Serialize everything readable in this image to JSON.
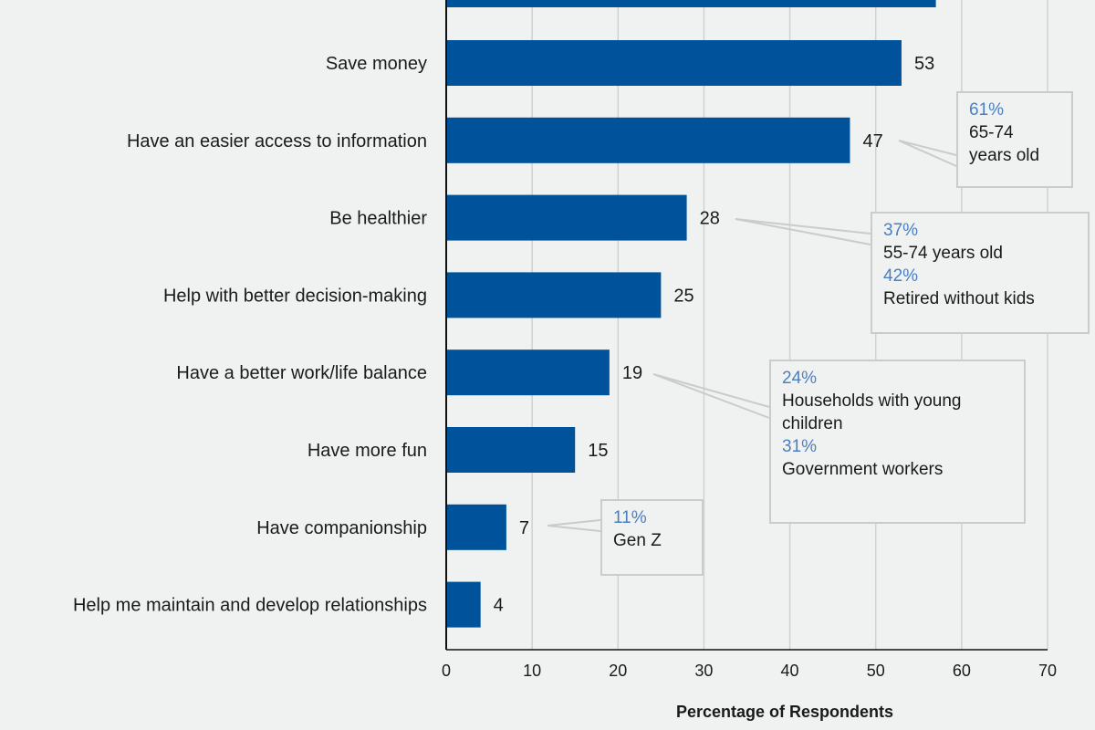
{
  "chart_data": {
    "type": "bar",
    "orientation": "horizontal",
    "xlabel": "Percentage of Respondents",
    "xlim": [
      0,
      70
    ],
    "xticks": [
      0,
      10,
      20,
      30,
      40,
      50,
      60,
      70
    ],
    "grid": true,
    "bar_color": "#00529b",
    "truncated_top_value": 57,
    "categories": [
      "Save money",
      "Have an easier access to information",
      "Be healthier",
      "Help with better decision-making",
      "Have a better work/life balance",
      "Have more fun",
      "Have companionship",
      "Help me maintain and develop relationships"
    ],
    "values": [
      53,
      47,
      28,
      25,
      19,
      15,
      7,
      4
    ],
    "annotations": [
      {
        "category": "Have an easier access to information",
        "lines": [
          {
            "pct": "61%",
            "text": "65-74"
          },
          {
            "pct": "",
            "text": "years old"
          }
        ]
      },
      {
        "category": "Be healthier",
        "lines": [
          {
            "pct": "37%",
            "text": "55-74 years old"
          },
          {
            "pct": "42%",
            "text": "Retired without kids"
          }
        ]
      },
      {
        "category": "Have a better work/life balance",
        "lines": [
          {
            "pct": "24%",
            "text": "Households with  young"
          },
          {
            "pct": "",
            "text": "children"
          },
          {
            "pct": "31%",
            "text": "Government workers"
          }
        ]
      },
      {
        "category": "Have companionship",
        "lines": [
          {
            "pct": "11%",
            "text": "Gen Z"
          }
        ]
      }
    ]
  },
  "colors": {
    "bar": "#00529b",
    "grid": "#cfd2d2",
    "callout_border": "#c9cccc",
    "highlight_pct": "#4a7fc1"
  }
}
